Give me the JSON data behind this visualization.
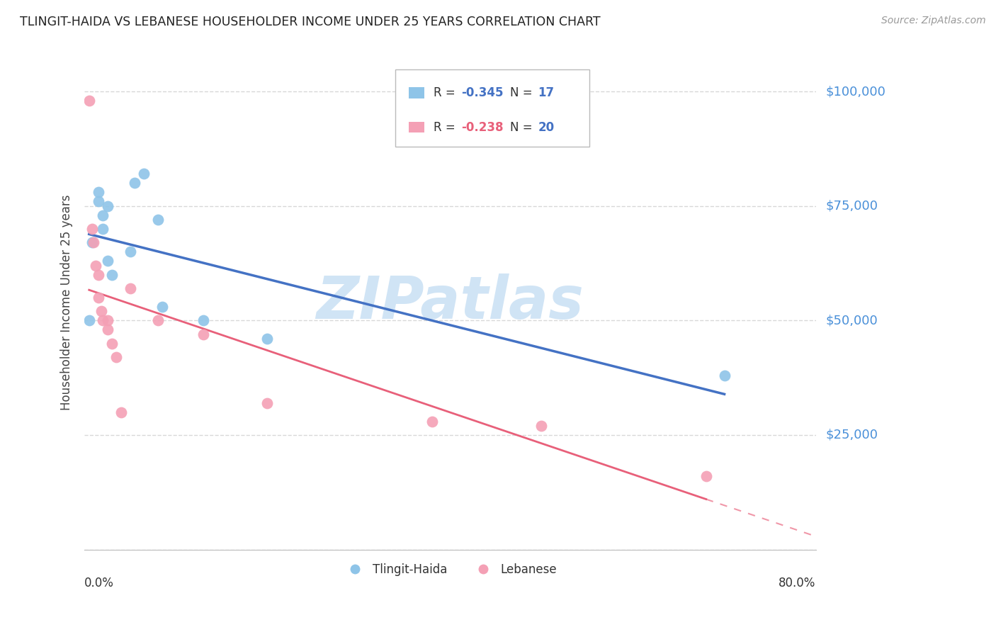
{
  "title": "TLINGIT-HAIDA VS LEBANESE HOUSEHOLDER INCOME UNDER 25 YEARS CORRELATION CHART",
  "source": "Source: ZipAtlas.com",
  "ylabel": "Householder Income Under 25 years",
  "y_ticks": [
    0,
    25000,
    50000,
    75000,
    100000
  ],
  "y_tick_labels": [
    "",
    "$25,000",
    "$50,000",
    "$75,000",
    "$100,000"
  ],
  "x_min": 0.0,
  "x_max": 0.8,
  "y_min": 0,
  "y_max": 108000,
  "tlingit_x": [
    0.005,
    0.008,
    0.015,
    0.015,
    0.02,
    0.02,
    0.025,
    0.025,
    0.03,
    0.05,
    0.055,
    0.065,
    0.08,
    0.085,
    0.13,
    0.2,
    0.7
  ],
  "tlingit_y": [
    50000,
    67000,
    76000,
    78000,
    73000,
    70000,
    63000,
    75000,
    60000,
    65000,
    80000,
    82000,
    72000,
    53000,
    50000,
    46000,
    38000
  ],
  "lebanese_x": [
    0.005,
    0.008,
    0.01,
    0.012,
    0.015,
    0.015,
    0.018,
    0.02,
    0.025,
    0.025,
    0.03,
    0.035,
    0.04,
    0.05,
    0.08,
    0.13,
    0.2,
    0.38,
    0.5,
    0.68
  ],
  "lebanese_y": [
    98000,
    70000,
    67000,
    62000,
    60000,
    55000,
    52000,
    50000,
    50000,
    48000,
    45000,
    42000,
    30000,
    57000,
    50000,
    47000,
    32000,
    28000,
    27000,
    16000
  ],
  "tlingit_R": -0.345,
  "tlingit_N": 17,
  "lebanese_R": -0.238,
  "lebanese_N": 20,
  "tlingit_color": "#8ec4e8",
  "lebanese_color": "#f4a0b5",
  "tlingit_line_color": "#4472c4",
  "lebanese_line_color": "#e8607a",
  "watermark": "ZIPatlas",
  "watermark_color": "#d0e4f5",
  "background_color": "#ffffff",
  "grid_color": "#d8d8d8",
  "axis_label_color": "#4a90d9",
  "title_color": "#222222",
  "legend_R_color_tlingit": "#4472c4",
  "legend_R_color_lebanese": "#e8607a",
  "legend_N_color": "#4472c4"
}
